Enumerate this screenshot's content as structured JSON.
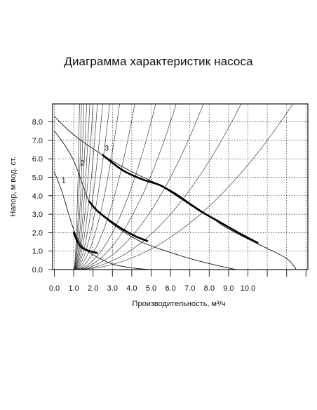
{
  "chart_data": {
    "type": "line",
    "title": "Диаграмма характеристик насоса",
    "xlabel": "Производительность, м³/ч",
    "ylabel": "Напор, м  вод. ст.",
    "xlim": [
      0,
      13
    ],
    "ylim": [
      0,
      9
    ],
    "x_ticks": [
      "0.0",
      "1.0",
      "2.0",
      "3.0",
      "4.0",
      "5.0",
      "6.0",
      "7.0",
      "8.0",
      "9.0",
      "10.0"
    ],
    "y_ticks": [
      "0.0",
      "1.0",
      "2.0",
      "3.0",
      "4.0",
      "5.0",
      "6.0",
      "7.0",
      "8.0"
    ],
    "grid": true,
    "series": [
      {
        "name": "1",
        "x": [
          0.0,
          0.4,
          0.8,
          1.1,
          1.5,
          2.0,
          3.0,
          4.0,
          5.0,
          6.0
        ],
        "y": [
          5.3,
          4.2,
          2.8,
          1.9,
          1.2,
          0.8,
          0.3,
          0.1,
          0.0,
          0.0
        ],
        "working_x": [
          1.0,
          1.2,
          1.4,
          1.7,
          2.0,
          2.2
        ],
        "working_y": [
          2.0,
          1.5,
          1.2,
          1.05,
          0.95,
          0.9
        ]
      },
      {
        "name": "2",
        "x": [
          0.0,
          0.5,
          1.0,
          1.5,
          1.8,
          2.5,
          3.5,
          4.5,
          5.5,
          7.0,
          8.5,
          9.4
        ],
        "y": [
          7.5,
          6.8,
          5.9,
          4.5,
          3.7,
          2.9,
          2.1,
          1.5,
          1.1,
          0.6,
          0.2,
          0.0
        ],
        "working_x": [
          1.8,
          2.2,
          2.8,
          3.5,
          4.2,
          4.8
        ],
        "working_y": [
          3.7,
          3.2,
          2.7,
          2.2,
          1.8,
          1.55
        ]
      },
      {
        "name": "3",
        "x": [
          0.0,
          1.0,
          2.5,
          4.0,
          6.0,
          7.0,
          8.0,
          9.0,
          10.5,
          12.0,
          12.5
        ],
        "y": [
          8.3,
          7.3,
          6.2,
          5.3,
          4.3,
          3.6,
          2.9,
          2.2,
          1.4,
          0.6,
          0.0
        ],
        "working_x": [
          2.5,
          3.5,
          4.5,
          5.5,
          6.5,
          7.5,
          8.5,
          9.5,
          10.5
        ],
        "working_y": [
          6.2,
          5.4,
          4.9,
          4.55,
          3.9,
          3.2,
          2.6,
          2.0,
          1.45
        ]
      }
    ],
    "system_curves_k": [
      0.9,
      1.6,
      2.6,
      4.0,
      6.0,
      9.0,
      13.0,
      20.0,
      32.0,
      55.0,
      100.0,
      0.07,
      0.12,
      0.2,
      0.32,
      0.5
    ],
    "series_labels": [
      "1",
      "2",
      "3"
    ]
  }
}
